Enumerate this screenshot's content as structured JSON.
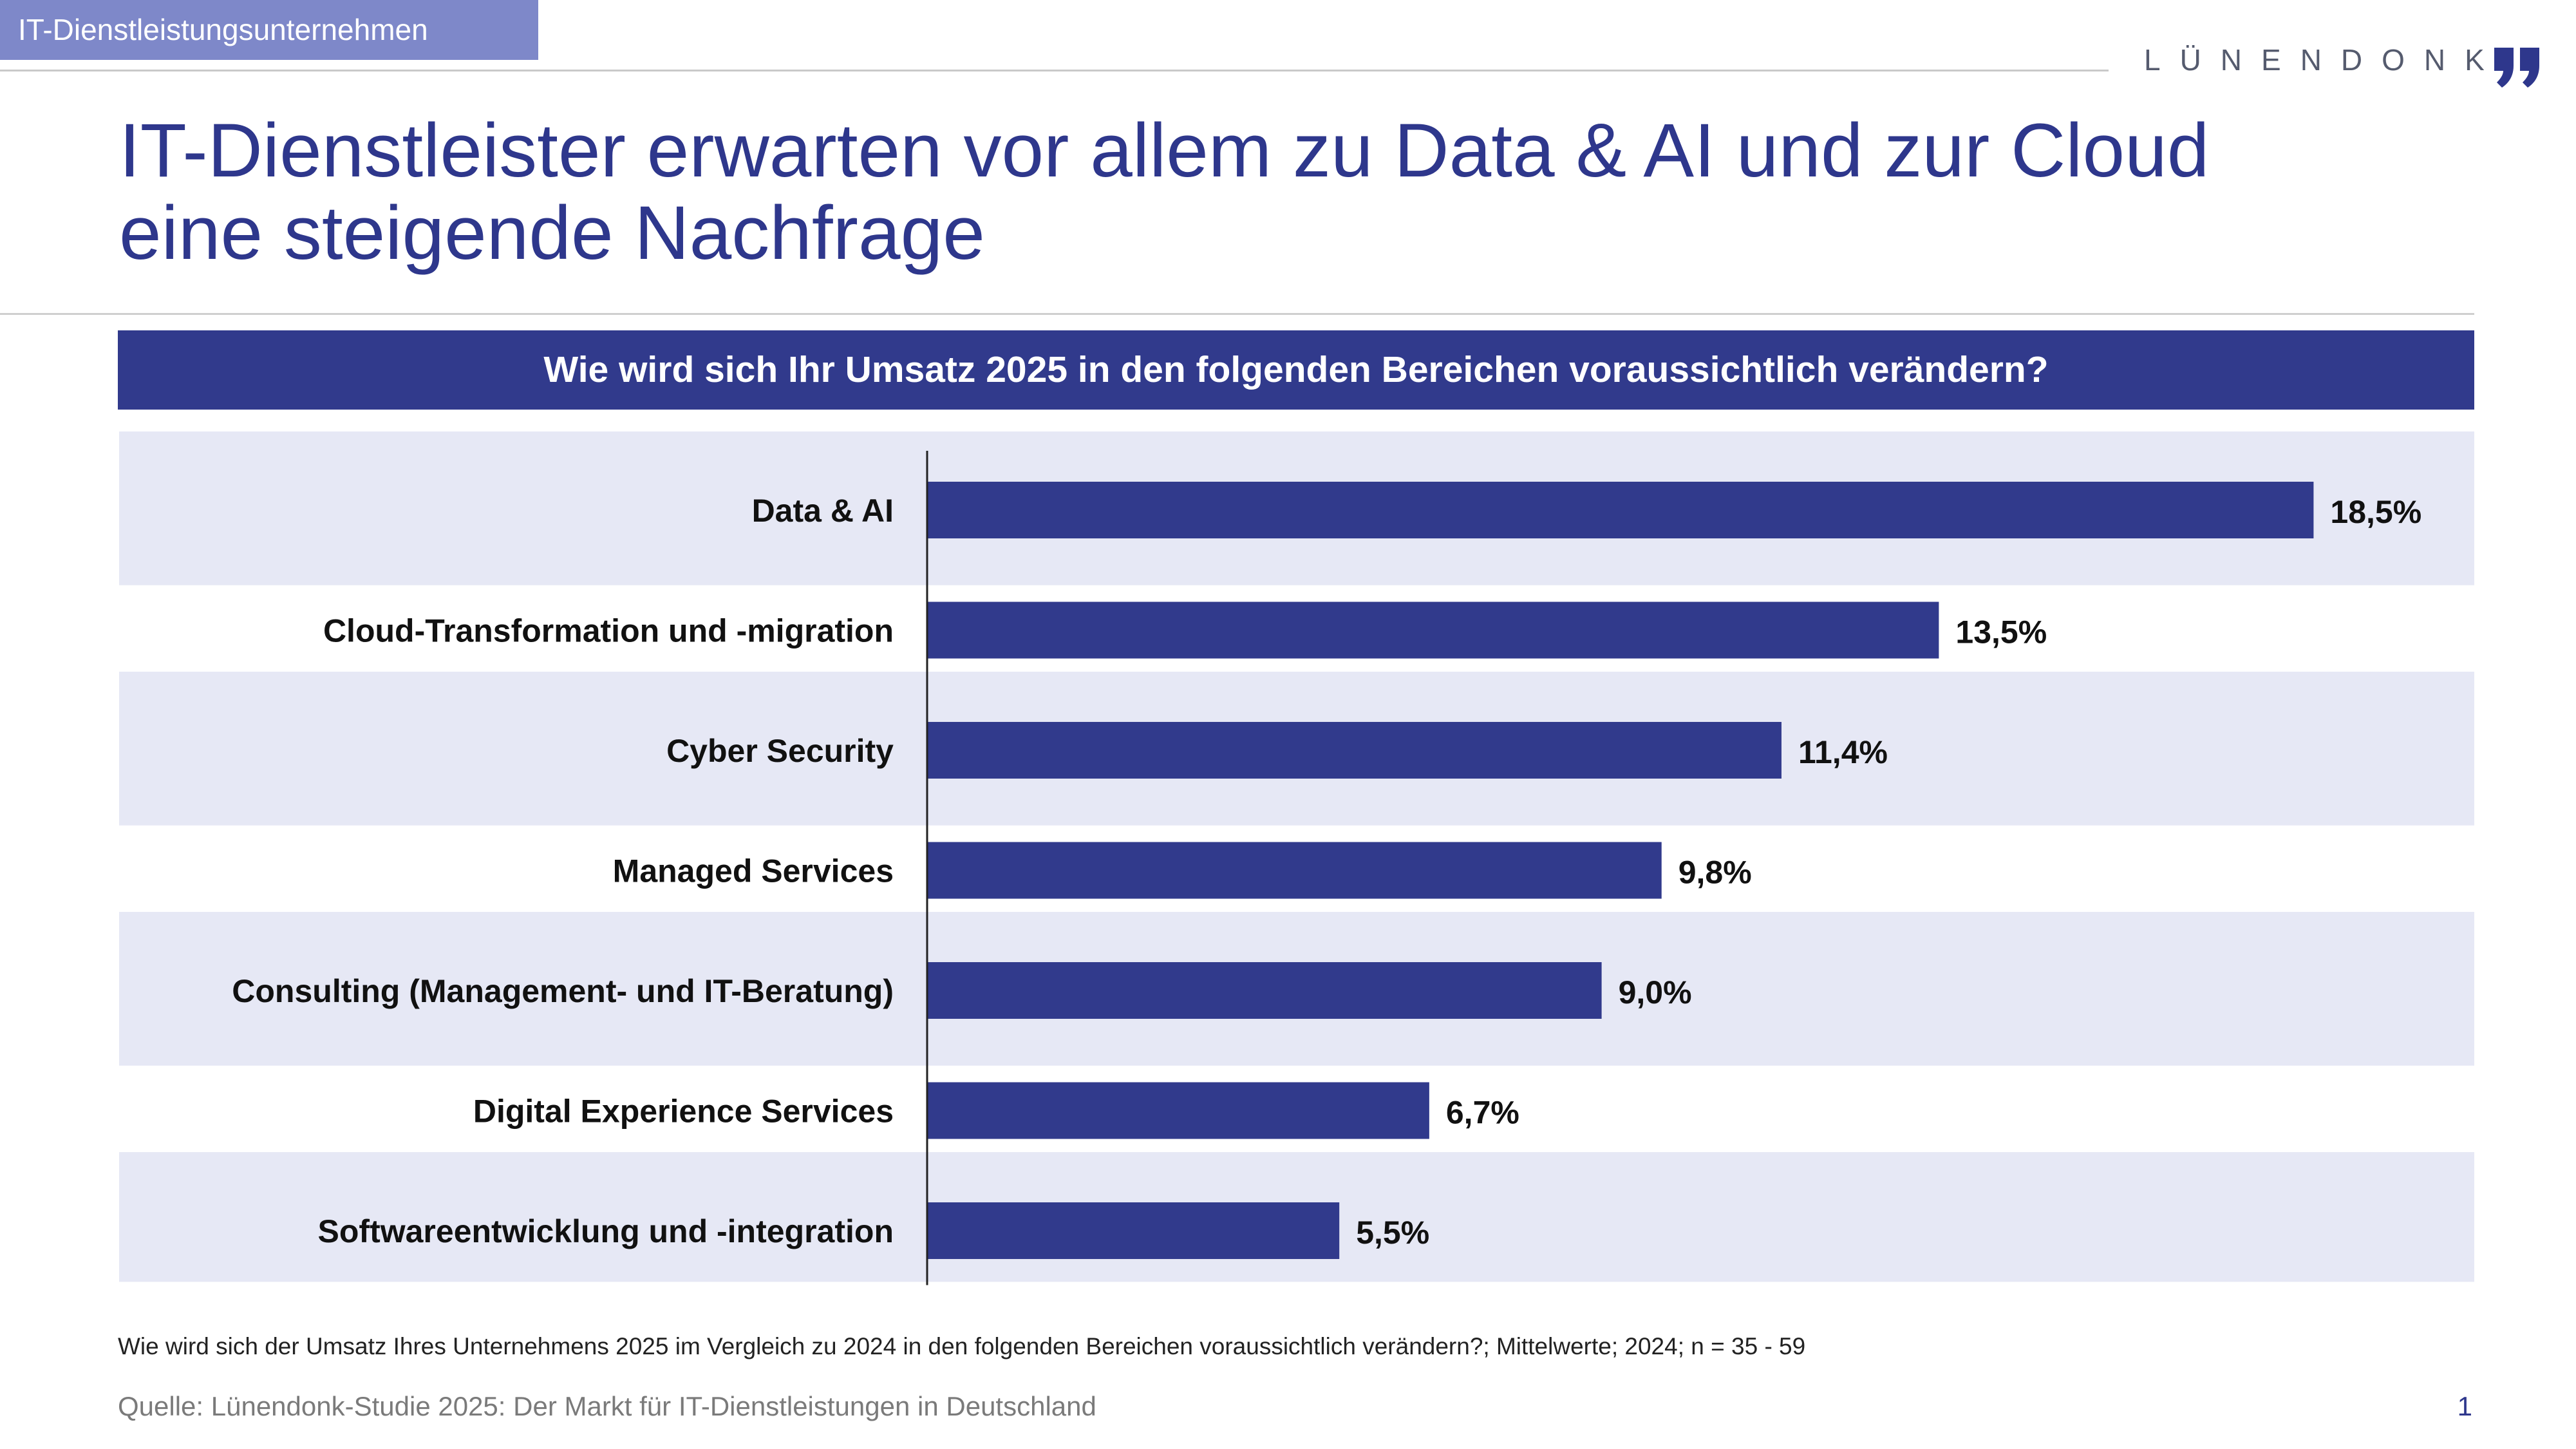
{
  "header": {
    "tag": "IT-Dienstleistungsunternehmen",
    "brand": "LÜNENDONK"
  },
  "title": "IT-Dienstleister erwarten vor allem zu Data & AI und zur Cloud eine steigende Nachfrage",
  "question": "Wie wird sich Ihr Umsatz 2025 in den folgenden Bereichen voraussichtlich verändern?",
  "chart_data": {
    "type": "bar",
    "orientation": "horizontal",
    "categories": [
      "Data & AI",
      "Cloud-Transformation und -migration",
      "Cyber Security",
      "Managed Services",
      "Consulting (Management- und IT-Beratung)",
      "Digital Experience Services",
      "Softwareentwicklung und -integration"
    ],
    "values": [
      18.5,
      13.5,
      11.4,
      9.8,
      9.0,
      6.7,
      5.5
    ],
    "value_labels": [
      "18,5%",
      "13,5%",
      "11,4%",
      "9,8%",
      "9,0%",
      "6,7%",
      "5,5%"
    ],
    "unit": "%",
    "xlim": [
      0,
      20
    ],
    "bar_color": "#313a8c",
    "band_color": "#e6e8f5",
    "grid": false,
    "legend": "none"
  },
  "footnote": "Wie wird sich der Umsatz Ihres Unternehmens 2025 im Vergleich zu 2024 in den folgenden Bereichen voraussichtlich verändern?; Mittelwerte; 2024; n = 35 - 59",
  "source": "Quelle: Lünendonk-Studie 2025: Der Markt für IT-Dienstleistungen in Deutschland",
  "page_number": "1",
  "colors": {
    "primary": "#2e378c",
    "tag_background": "#7e88c9"
  }
}
